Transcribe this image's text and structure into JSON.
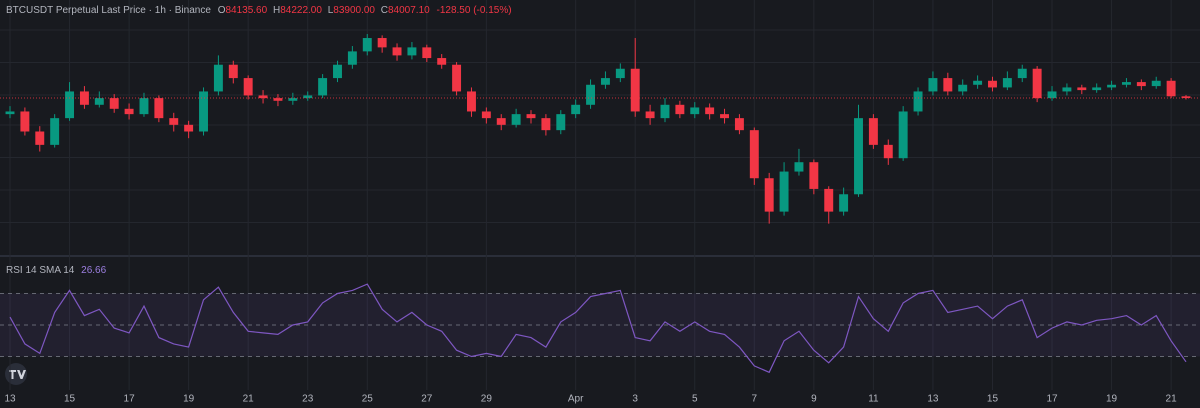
{
  "header": {
    "symbol": "BTCUSDT Perpetual Last Price · 1h · Binance",
    "ohlc": [
      {
        "key": "O",
        "value": "84135.60"
      },
      {
        "key": "H",
        "value": "84222.00"
      },
      {
        "key": "L",
        "value": "83900.00"
      },
      {
        "key": "C",
        "value": "84007.10"
      }
    ],
    "change": "-128.50 (-0.15%)"
  },
  "chart_data": [
    {
      "type": "candlestick",
      "up_color": "#089981",
      "down_color": "#f23645",
      "ylim": [
        73000,
        90000
      ],
      "last_price_line": true,
      "categories": [
        "13",
        null,
        null,
        null,
        "15",
        null,
        null,
        null,
        "17",
        null,
        null,
        null,
        "19",
        null,
        null,
        null,
        "21",
        null,
        null,
        null,
        "23",
        null,
        null,
        null,
        "25",
        null,
        null,
        null,
        "27",
        null,
        null,
        null,
        "29",
        null,
        null,
        null,
        null,
        null,
        "Apr",
        null,
        null,
        null,
        "3",
        null,
        null,
        null,
        "5",
        null,
        null,
        null,
        "7",
        null,
        null,
        null,
        "9",
        null,
        null,
        null,
        "11",
        null,
        null,
        null,
        "13",
        null,
        null,
        null,
        "15",
        null,
        null,
        null,
        "17",
        null,
        null,
        null,
        "19",
        null,
        null,
        null,
        "21",
        null
      ],
      "open": [
        82800,
        83000,
        81500,
        80500,
        82500,
        84500,
        83500,
        84000,
        83200,
        82800,
        84000,
        82500,
        82000,
        81500,
        84500,
        86500,
        85500,
        84200,
        84000,
        83800,
        84000,
        84200,
        85500,
        86500,
        87500,
        88500,
        87800,
        87200,
        87800,
        87000,
        86500,
        84500,
        83000,
        82500,
        82000,
        82800,
        82500,
        81600,
        82800,
        83500,
        85000,
        85500,
        86200,
        83000,
        82500,
        83500,
        82800,
        83300,
        82800,
        82500,
        81600,
        78000,
        75500,
        78500,
        79200,
        77200,
        75500,
        76800,
        82500,
        80500,
        79500,
        83000,
        84500,
        85500,
        84500,
        85000,
        85300,
        84800,
        85500,
        86200,
        84000,
        84500,
        84800,
        84600,
        84800,
        85000,
        85200,
        84900,
        85300,
        84135.6
      ],
      "high": [
        83400,
        83300,
        81900,
        82800,
        85200,
        84900,
        84500,
        84300,
        83600,
        84400,
        84200,
        82900,
        82300,
        84800,
        87200,
        86800,
        85700,
        84600,
        84300,
        84400,
        84500,
        85800,
        86800,
        87900,
        88800,
        88700,
        88100,
        88200,
        88000,
        87300,
        86700,
        84800,
        83300,
        82800,
        83200,
        83100,
        82800,
        83100,
        83900,
        85400,
        86000,
        86600,
        88500,
        83500,
        84000,
        83800,
        83700,
        83600,
        83200,
        82800,
        81800,
        78400,
        79200,
        80200,
        79400,
        77400,
        77300,
        83500,
        82800,
        80900,
        83400,
        84800,
        86000,
        85900,
        85400,
        85700,
        85600,
        86000,
        86500,
        86400,
        84900,
        85100,
        85000,
        85100,
        85300,
        85500,
        85400,
        85600,
        85500,
        84222
      ],
      "low": [
        82500,
        81200,
        80000,
        80300,
        82300,
        83200,
        83300,
        82900,
        82400,
        82600,
        82200,
        81500,
        81000,
        81200,
        84200,
        85100,
        83900,
        83600,
        83400,
        83500,
        83800,
        84000,
        85200,
        86200,
        87200,
        87400,
        86800,
        86900,
        86700,
        86200,
        84200,
        82600,
        82100,
        81600,
        81800,
        82100,
        81200,
        81300,
        82500,
        83200,
        84700,
        85200,
        82600,
        82000,
        82200,
        82500,
        82500,
        82400,
        82100,
        81300,
        77500,
        74600,
        75200,
        78200,
        76800,
        74600,
        75200,
        76600,
        80200,
        79000,
        79300,
        82700,
        84200,
        84200,
        84200,
        84700,
        84500,
        84600,
        85200,
        83700,
        83800,
        84200,
        84300,
        84400,
        84600,
        84800,
        84600,
        84700,
        84000,
        83900
      ],
      "close": [
        83000,
        81500,
        80500,
        82500,
        84500,
        83500,
        84000,
        83200,
        82800,
        84000,
        82500,
        82000,
        81500,
        84500,
        86500,
        85500,
        84200,
        84000,
        83800,
        84000,
        84200,
        85500,
        86500,
        87500,
        88500,
        87800,
        87200,
        87800,
        87000,
        86500,
        84500,
        83000,
        82500,
        82000,
        82800,
        82500,
        81600,
        82800,
        83500,
        85000,
        85500,
        86200,
        83000,
        82500,
        83500,
        82800,
        83300,
        82800,
        82500,
        81600,
        78000,
        75500,
        78500,
        79200,
        77200,
        75500,
        76800,
        82500,
        80500,
        79500,
        83000,
        84500,
        85500,
        84500,
        85000,
        85300,
        84800,
        85500,
        86200,
        84000,
        84500,
        84800,
        84600,
        84800,
        85000,
        85200,
        84900,
        85300,
        84135.6,
        84007.1
      ]
    },
    {
      "type": "line",
      "title": "RSI 14 SMA 14",
      "color": "#7e57c2",
      "ylim": [
        10,
        90
      ],
      "levels": [
        30,
        50,
        70
      ],
      "values": [
        55,
        38,
        32,
        58,
        72,
        56,
        60,
        48,
        45,
        62,
        42,
        38,
        36,
        66,
        74,
        58,
        46,
        45,
        44,
        50,
        52,
        64,
        70,
        72,
        76,
        60,
        52,
        58,
        50,
        46,
        34,
        30,
        32,
        30,
        44,
        42,
        36,
        52,
        58,
        68,
        70,
        72,
        42,
        40,
        52,
        46,
        52,
        46,
        44,
        36,
        24,
        20,
        40,
        46,
        34,
        26,
        36,
        68,
        54,
        46,
        64,
        70,
        72,
        58,
        60,
        62,
        54,
        62,
        66,
        42,
        48,
        52,
        50,
        53,
        54,
        56,
        50,
        56,
        40,
        26.66
      ]
    }
  ]
}
